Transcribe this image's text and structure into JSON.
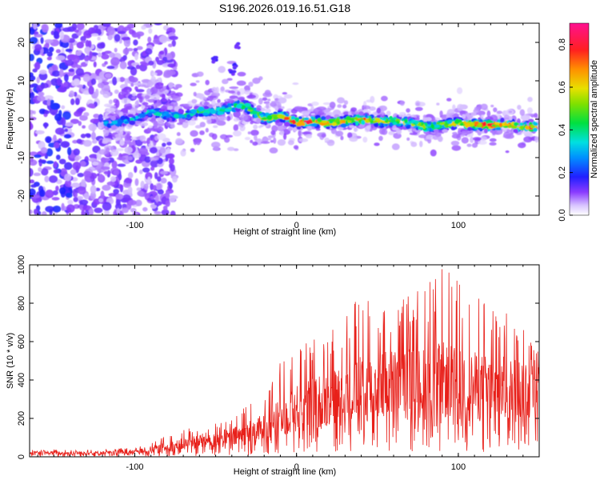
{
  "title": "S196.2026.019.16.51.G18",
  "chart_data": [
    {
      "type": "heatmap",
      "xlabel": "Height of straight line (km)",
      "ylabel": "Frequency (Hz)",
      "xlim": [
        -165,
        150
      ],
      "ylim": [
        -25,
        25
      ],
      "xticks": [
        -100,
        0,
        100
      ],
      "xtick_labels": [
        "-100",
        "0",
        "100"
      ],
      "yticks": [
        -20,
        -10,
        0,
        10,
        20
      ],
      "ytick_labels": [
        "-20",
        "-10",
        "0",
        "10",
        "20"
      ],
      "colorbar": {
        "label": "Normalized spectral amplitude",
        "range": [
          0,
          0.9
        ],
        "ticks": [
          0,
          0.2,
          0.4,
          0.6,
          0.8
        ],
        "tick_labels": [
          "0.0",
          "0.2",
          "0.4",
          "0.6",
          "0.8"
        ]
      },
      "ridge": {
        "x": [
          -115,
          -100,
          -90,
          -80,
          -70,
          -60,
          -50,
          -40,
          -35,
          -30,
          -20,
          -10,
          0,
          10,
          20,
          30,
          40,
          50,
          60,
          70,
          80,
          90,
          100,
          110,
          120,
          130,
          140,
          148
        ],
        "freq": [
          -1,
          0,
          2,
          1,
          1,
          2,
          2,
          3,
          4,
          3,
          0,
          1,
          -1,
          -0.5,
          -1,
          -0.5,
          0,
          -0.5,
          -0.5,
          -1,
          -2,
          -1.5,
          -1,
          -1.5,
          -1.5,
          -1.5,
          -2,
          -2
        ],
        "peak_amplitude": [
          0.35,
          0.4,
          0.4,
          0.45,
          0.45,
          0.5,
          0.5,
          0.55,
          0.55,
          0.6,
          0.65,
          0.7,
          0.85,
          0.9,
          0.75,
          0.7,
          0.8,
          0.7,
          0.65,
          0.6,
          0.6,
          0.6,
          0.65,
          0.85,
          0.85,
          0.8,
          0.75,
          0.85
        ]
      }
    },
    {
      "type": "line",
      "xlabel": "Height of straight line (km)",
      "ylabel": "SNR (10 * v/v)",
      "xlim": [
        -165,
        150
      ],
      "ylim": [
        0,
        1000
      ],
      "xticks": [
        -100,
        0,
        100
      ],
      "xtick_labels": [
        "-100",
        "0",
        "100"
      ],
      "yticks": [
        0,
        200,
        400,
        600,
        800,
        1000
      ],
      "ytick_labels": [
        "0",
        "200",
        "400",
        "600",
        "800",
        "1000"
      ],
      "series": [
        {
          "name": "SNR",
          "color": "#e8201a",
          "envelope": {
            "x": [
              -165,
              -120,
              -100,
              -80,
              -60,
              -40,
              -20,
              -10,
              0,
              20,
              40,
              60,
              80,
              90,
              100,
              120,
              140,
              150
            ],
            "mean": [
              20,
              20,
              25,
              50,
              80,
              100,
              150,
              200,
              250,
              300,
              350,
              380,
              380,
              400,
              380,
              350,
              350,
              400
            ],
            "max": [
              35,
              40,
              50,
              110,
              170,
              200,
              380,
              550,
              600,
              650,
              850,
              800,
              900,
              1000,
              920,
              800,
              700,
              600
            ]
          }
        }
      ]
    }
  ]
}
